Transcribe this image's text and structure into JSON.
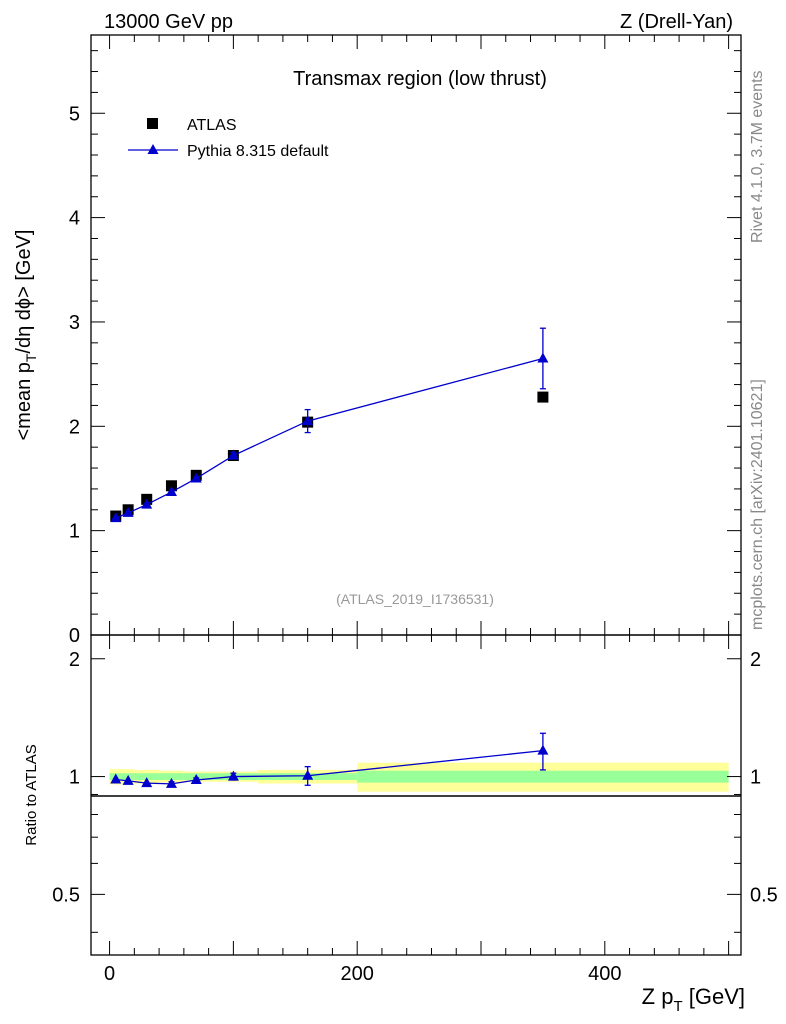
{
  "header": {
    "left": "13000 GeV pp",
    "right": "Z (Drell-Yan)"
  },
  "side_labels": {
    "rivet": "Rivet 4.1.0,  3.7M events",
    "mcplots": "mcplots.cern.ch [arXiv:2401.10621]"
  },
  "chart_data": {
    "type": "scatter",
    "title": "Transmax region (low thrust)",
    "reference": "(ATLAS_2019_I1736531)",
    "xlabel": {
      "main": "Z p",
      "sub": "T",
      "unit": " [GeV]"
    },
    "ylabel": {
      "p1": "<mean p",
      "sub": "T",
      "p2": "/dη dϕ> [GeV]"
    },
    "ratio_ylabel": "Ratio to ATLAS",
    "xlim": [
      -15,
      510
    ],
    "ylim": [
      0,
      5.75
    ],
    "ratio_ylim": [
      0.35,
      2.3
    ],
    "x_ticks": [
      0,
      200,
      400
    ],
    "x_tick_labels": [
      "0",
      "200",
      "400"
    ],
    "y_ticks": [
      0,
      1,
      2,
      3,
      4,
      5
    ],
    "y_tick_labels": [
      "0",
      "1",
      "2",
      "3",
      "4",
      "5"
    ],
    "ratio_y_ticks": [
      0.5,
      1,
      2
    ],
    "ratio_y_tick_labels": [
      "0.5",
      "1",
      "2"
    ],
    "legend": [
      "ATLAS",
      "Pythia 8.315 default"
    ],
    "series": [
      {
        "name": "ATLAS",
        "marker": "square",
        "color": "#000000",
        "x": [
          5,
          15,
          30,
          50,
          70,
          100,
          160,
          350
        ],
        "y": [
          1.14,
          1.2,
          1.3,
          1.43,
          1.53,
          1.72,
          2.04,
          2.28
        ],
        "bin_edges": [
          0,
          10,
          20,
          40,
          60,
          80,
          120,
          200,
          500
        ],
        "band_stat": [
          0.02,
          0.02,
          0.02,
          0.02,
          0.02,
          0.02,
          0.02,
          0.035
        ],
        "band_total": [
          0.045,
          0.045,
          0.04,
          0.035,
          0.03,
          0.03,
          0.04,
          0.085
        ]
      },
      {
        "name": "Pythia 8.315 default",
        "marker": "triangle",
        "color": "#0000cc",
        "x": [
          5,
          15,
          30,
          50,
          70,
          100,
          160,
          350
        ],
        "y": [
          1.12,
          1.17,
          1.25,
          1.37,
          1.5,
          1.72,
          2.05,
          2.65
        ],
        "yerr": [
          0.01,
          0.01,
          0.01,
          0.015,
          0.015,
          0.03,
          0.11,
          0.29
        ],
        "ratio": [
          0.983,
          0.975,
          0.962,
          0.958,
          0.98,
          1.0,
          1.005,
          1.165
        ],
        "ratio_err": [
          0.01,
          0.01,
          0.01,
          0.012,
          0.012,
          0.02,
          0.055,
          0.125
        ]
      }
    ]
  }
}
